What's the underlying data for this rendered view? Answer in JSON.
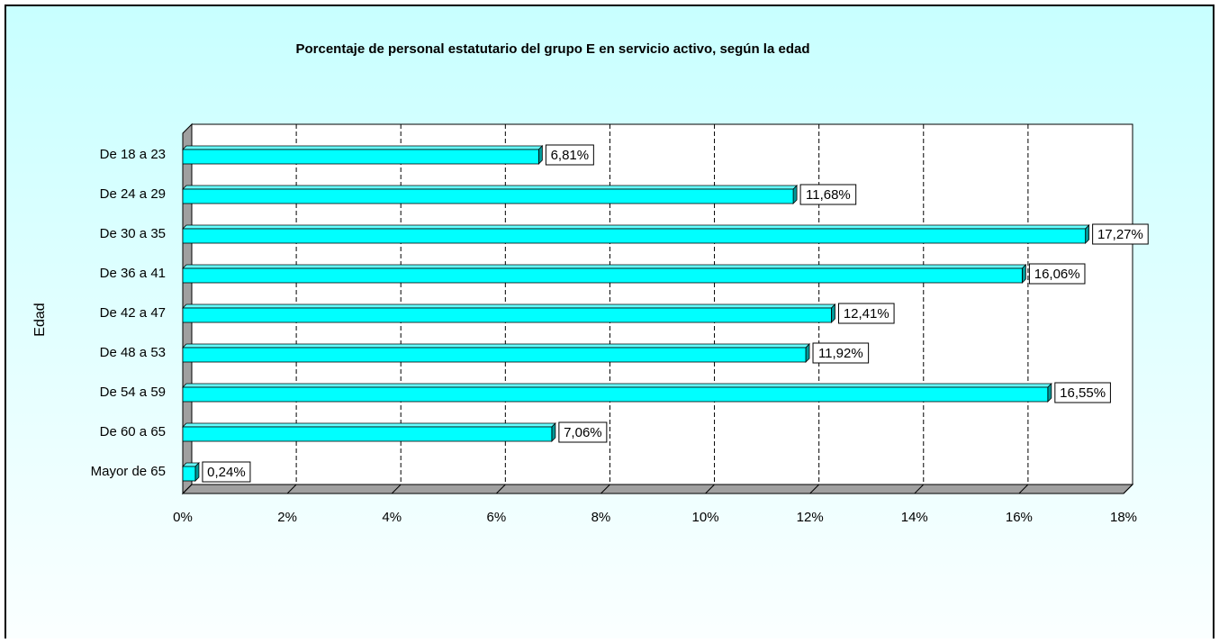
{
  "chart_data": {
    "type": "bar",
    "orientation": "horizontal",
    "title": "Porcentaje de personal estatutario del grupo E en servicio activo, según la edad",
    "y_label": "Edad",
    "categories": [
      "De 18 a 23",
      "De 24 a 29",
      "De 30 a 35",
      "De 36 a 41",
      "De 42 a 47",
      "De 48 a 53",
      "De 54 a 59",
      "De 60 a 65",
      "Mayor de 65"
    ],
    "values": [
      6.81,
      11.68,
      17.27,
      16.06,
      12.41,
      11.92,
      16.55,
      7.06,
      0.24
    ],
    "value_labels": [
      "6,81%",
      "11,68%",
      "17,27%",
      "16,06%",
      "12,41%",
      "11,92%",
      "16,55%",
      "7,06%",
      "0,24%"
    ],
    "color": "#00ffff",
    "xlim": [
      0,
      18
    ],
    "xticks": [
      {
        "value": 0,
        "label": "0%"
      },
      {
        "value": 2,
        "label": "2%"
      },
      {
        "value": 4,
        "label": "4%"
      },
      {
        "value": 6,
        "label": "6%"
      },
      {
        "value": 8,
        "label": "8%"
      },
      {
        "value": 10,
        "label": "10%"
      },
      {
        "value": 12,
        "label": "12%"
      },
      {
        "value": 14,
        "label": "14%"
      },
      {
        "value": 16,
        "label": "16%"
      },
      {
        "value": 18,
        "label": "18%"
      }
    ],
    "grid": true
  }
}
